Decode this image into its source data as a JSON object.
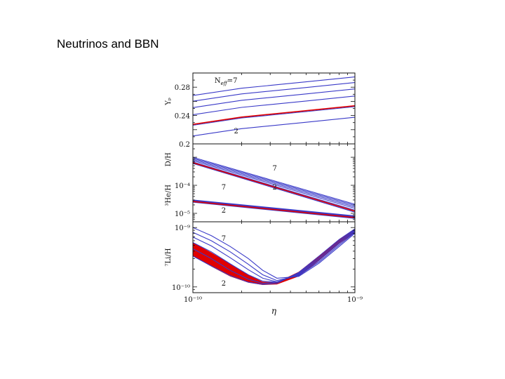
{
  "slide": {
    "title": "Neutrinos and BBN"
  },
  "chart_data": {
    "type": "line",
    "xlabel": "η",
    "x_scale": "log",
    "xlim": [
      1e-10,
      1e-09
    ],
    "x_ticks": [
      {
        "value": 1e-10,
        "label": "10⁻¹⁰"
      },
      {
        "value": 1e-09,
        "label": "10⁻⁹"
      }
    ],
    "colors": {
      "curves": "#3a3ac8",
      "standard_model": "#e00000",
      "axes": "#111111"
    },
    "panels": [
      {
        "id": "helium4",
        "ylabel": "Yₚ",
        "y_scale": "linear",
        "ylim": [
          0.2,
          0.3
        ],
        "y_ticks": [
          {
            "value": 0.24,
            "label": "0.24"
          },
          {
            "value": 0.28,
            "label": "0.28"
          }
        ],
        "bottom_tick_label": "0.2",
        "annotations": [
          {
            "text": "N",
            "sub": "eff",
            "rest": "=7",
            "x": 1.6e-10,
            "y": 0.286
          },
          {
            "text": "2",
            "x": 1.85e-10,
            "y": 0.215
          }
        ],
        "series": [
          {
            "group": "Yp",
            "neff": 2,
            "x": [
              1e-10,
              2e-10,
              5e-10,
              1e-09
            ],
            "y": [
              0.2112,
              0.2215,
              0.2305,
              0.2375
            ]
          },
          {
            "group": "Yp",
            "neff": 3,
            "x": [
              1e-10,
              2e-10,
              5e-10,
              1e-09
            ],
            "y": [
              0.2262,
              0.2365,
              0.2455,
              0.2525
            ]
          },
          {
            "group": "Yp",
            "neff": 4,
            "x": [
              1e-10,
              2e-10,
              5e-10,
              1e-09
            ],
            "y": [
              0.2412,
              0.2515,
              0.2605,
              0.2675
            ]
          },
          {
            "group": "Yp",
            "neff": 5,
            "x": [
              1e-10,
              2e-10,
              5e-10,
              1e-09
            ],
            "y": [
              0.2512,
              0.2615,
              0.2705,
              0.2775
            ]
          },
          {
            "group": "Yp",
            "neff": 6,
            "x": [
              1e-10,
              2e-10,
              5e-10,
              1e-09
            ],
            "y": [
              0.2602,
              0.2705,
              0.2795,
              0.2865
            ]
          },
          {
            "group": "Yp",
            "neff": 7,
            "x": [
              1e-10,
              2e-10,
              5e-10,
              1e-09
            ],
            "y": [
              0.2682,
              0.2785,
              0.2875,
              0.2945
            ]
          },
          {
            "group": "Yp",
            "neff": 3,
            "standard": true,
            "x": [
              1e-10,
              2e-10,
              5e-10,
              1e-09
            ],
            "y": [
              0.2275,
              0.2378,
              0.2468,
              0.2538
            ]
          }
        ]
      },
      {
        "id": "deuterium-helium3",
        "ylabel": "D/H",
        "ylabel2": "³He/H",
        "y_scale": "log",
        "ylim": [
          5e-06,
          0.003
        ],
        "y_ticks": [
          {
            "value": 0.0001,
            "label": "10⁻⁴"
          },
          {
            "value": 1e-05,
            "label": "10⁻⁵"
          }
        ],
        "annotations": [
          {
            "text": "7",
            "x": 3.2e-10,
            "y": 0.00034
          },
          {
            "text": "2",
            "x": 3.2e-10,
            "y": 7e-05
          },
          {
            "text": "7",
            "x": 1.55e-10,
            "y": 7e-05
          },
          {
            "text": "2",
            "x": 1.55e-10,
            "y": 1.05e-05
          }
        ],
        "series": [
          {
            "group": "D/H",
            "neff": 2,
            "x": [
              1e-10,
              1e-09
            ],
            "y": [
              0.0006,
              1.1e-05
            ]
          },
          {
            "group": "D/H",
            "neff": 3,
            "x": [
              1e-10,
              1e-09
            ],
            "y": [
              0.00068,
              1.3e-05
            ]
          },
          {
            "group": "D/H",
            "neff": 4,
            "x": [
              1e-10,
              1e-09
            ],
            "y": [
              0.00076,
              1.5e-05
            ]
          },
          {
            "group": "D/H",
            "neff": 5,
            "x": [
              1e-10,
              1e-09
            ],
            "y": [
              0.00084,
              1.7e-05
            ]
          },
          {
            "group": "D/H",
            "neff": 6,
            "x": [
              1e-10,
              1e-09
            ],
            "y": [
              0.00092,
              1.9e-05
            ]
          },
          {
            "group": "D/H",
            "neff": 7,
            "x": [
              1e-10,
              1e-09
            ],
            "y": [
              0.001,
              2.1e-05
            ]
          },
          {
            "group": "D/H",
            "neff": 3,
            "standard": true,
            "x": [
              1e-10,
              1e-09
            ],
            "y": [
              0.00064,
              1.2e-05
            ]
          },
          {
            "group": "3He/H",
            "neff": 2,
            "x": [
              1e-10,
              1e-09
            ],
            "y": [
              2.5e-05,
              6.6e-06
            ]
          },
          {
            "group": "3He/H",
            "neff": 3,
            "x": [
              1e-10,
              1e-09
            ],
            "y": [
              2.6e-05,
              6.9e-06
            ]
          },
          {
            "group": "3He/H",
            "neff": 4,
            "x": [
              1e-10,
              1e-09
            ],
            "y": [
              2.7e-05,
              7.2e-06
            ]
          },
          {
            "group": "3He/H",
            "neff": 5,
            "x": [
              1e-10,
              1e-09
            ],
            "y": [
              2.8e-05,
              7.5e-06
            ]
          },
          {
            "group": "3He/H",
            "neff": 6,
            "x": [
              1e-10,
              1e-09
            ],
            "y": [
              2.9e-05,
              7.8e-06
            ]
          },
          {
            "group": "3He/H",
            "neff": 7,
            "x": [
              1e-10,
              1e-09
            ],
            "y": [
              3e-05,
              8.1e-06
            ]
          },
          {
            "group": "3He/H",
            "neff": 3,
            "standard": true,
            "x": [
              1e-10,
              1e-09
            ],
            "y": [
              2.65e-05,
              7.1e-06
            ]
          }
        ]
      },
      {
        "id": "lithium7",
        "ylabel": "⁷Li/H",
        "y_scale": "log",
        "ylim": [
          8e-11,
          1.25e-09
        ],
        "y_ticks": [
          {
            "value": 1e-09,
            "label": "10⁻⁹"
          },
          {
            "value": 1e-10,
            "label": "10⁻¹⁰"
          }
        ],
        "annotations": [
          {
            "text": "7",
            "x": 1.55e-10,
            "y": 6e-10
          },
          {
            "text": "2",
            "x": 1.55e-10,
            "y": 1.05e-10
          }
        ],
        "series": [
          {
            "group": "Li7",
            "neff": 2,
            "x": [
              1e-10,
              1.3e-10,
              1.7e-10,
              2.2e-10,
              2.7e-10,
              3.3e-10,
              4.5e-10,
              6e-10,
              8e-10,
              1e-09
            ],
            "y": [
              3.3e-10,
              2.25e-10,
              1.55e-10,
              1.2e-10,
              1.1e-10,
              1.15e-10,
              1.75e-10,
              3.3e-10,
              6.3e-10,
              9.5e-10
            ]
          },
          {
            "group": "Li7",
            "neff": 3,
            "x": [
              1e-10,
              1.3e-10,
              1.7e-10,
              2.2e-10,
              2.7e-10,
              3.3e-10,
              4.5e-10,
              6e-10,
              8e-10,
              1e-09
            ],
            "y": [
              4.4e-10,
              3e-10,
              1.9e-10,
              1.35e-10,
              1.15e-10,
              1.2e-10,
              1.7e-10,
              3.1e-10,
              6e-10,
              9.2e-10
            ]
          },
          {
            "group": "Li7",
            "neff": 4,
            "x": [
              1e-10,
              1.3e-10,
              1.7e-10,
              2.2e-10,
              2.7e-10,
              3.3e-10,
              4.5e-10,
              6e-10,
              8e-10,
              1e-09
            ],
            "y": [
              5.6e-10,
              3.9e-10,
              2.45e-10,
              1.6e-10,
              1.25e-10,
              1.2e-10,
              1.65e-10,
              2.95e-10,
              5.7e-10,
              8.9e-10
            ]
          },
          {
            "group": "Li7",
            "neff": 5,
            "x": [
              1e-10,
              1.3e-10,
              1.7e-10,
              2.2e-10,
              2.7e-10,
              3.3e-10,
              4.5e-10,
              6e-10,
              8e-10,
              1e-09
            ],
            "y": [
              6.9e-10,
              4.9e-10,
              3.1e-10,
              1.95e-10,
              1.4e-10,
              1.22e-10,
              1.6e-10,
              2.8e-10,
              5.4e-10,
              8.6e-10
            ]
          },
          {
            "group": "Li7",
            "neff": 6,
            "x": [
              1e-10,
              1.3e-10,
              1.7e-10,
              2.2e-10,
              2.7e-10,
              3.3e-10,
              4.5e-10,
              6e-10,
              8e-10,
              1e-09
            ],
            "y": [
              8.3e-10,
              6e-10,
              3.9e-10,
              2.4e-10,
              1.6e-10,
              1.28e-10,
              1.55e-10,
              2.65e-10,
              5.1e-10,
              8.3e-10
            ]
          },
          {
            "group": "Li7",
            "neff": 7,
            "x": [
              1e-10,
              1.3e-10,
              1.7e-10,
              2.2e-10,
              2.7e-10,
              3.3e-10,
              4.5e-10,
              6e-10,
              8e-10,
              1e-09
            ],
            "y": [
              1e-09,
              7.3e-10,
              4.8e-10,
              3e-10,
              1.9e-10,
              1.4e-10,
              1.5e-10,
              2.5e-10,
              4.8e-10,
              8e-10
            ]
          }
        ],
        "band": {
          "x": [
            1e-10,
            1.3e-10,
            1.7e-10,
            2.2e-10,
            2.7e-10,
            3.3e-10,
            4.5e-10,
            6e-10,
            8e-10,
            1e-09
          ],
          "upper": [
            5.6e-10,
            3.8e-10,
            2.45e-10,
            1.6e-10,
            1.22e-10,
            1.2e-10,
            1.8e-10,
            3.35e-10,
            6.3e-10,
            9.6e-10
          ],
          "lower": [
            3.3e-10,
            2.2e-10,
            1.5e-10,
            1.18e-10,
            1.08e-10,
            1.1e-10,
            1.5e-10,
            2.75e-10,
            5.3e-10,
            8.2e-10
          ]
        }
      }
    ]
  }
}
